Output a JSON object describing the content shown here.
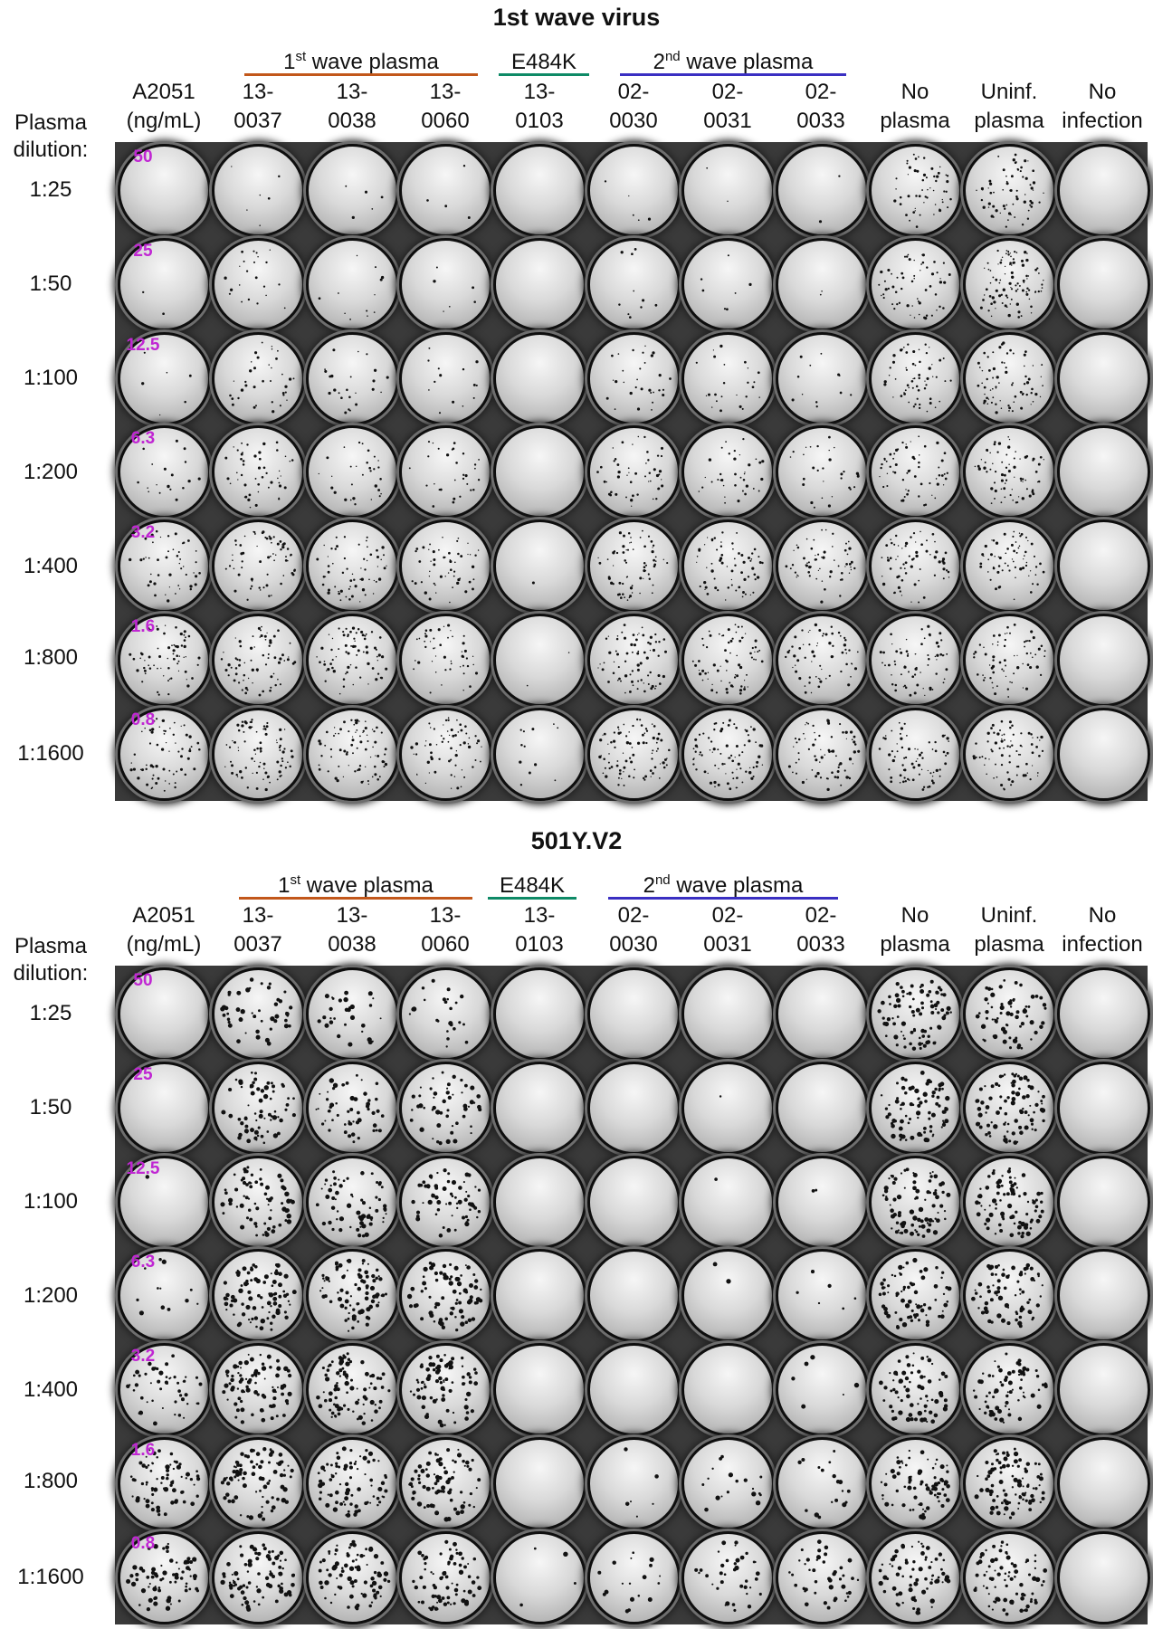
{
  "panels": [
    {
      "title": "1st wave virus",
      "groups": [
        {
          "label_pre": "1",
          "label_sup": "st",
          "label_post": " wave plasma",
          "color": "#c2571a"
        },
        {
          "label_pre": "E484K",
          "label_sup": "",
          "label_post": "",
          "color": "#0e8a66"
        },
        {
          "label_pre": "2",
          "label_sup": "nd",
          "label_post": " wave plasma",
          "color": "#3a2fc2"
        }
      ],
      "columns": [
        {
          "line1": "A2051",
          "line2": "(ng/mL)"
        },
        {
          "line1": "13-",
          "line2": "0037"
        },
        {
          "line1": "13-",
          "line2": "0038"
        },
        {
          "line1": "13-",
          "line2": "0060"
        },
        {
          "line1": "13-",
          "line2": "0103"
        },
        {
          "line1": "02-",
          "line2": "0030"
        },
        {
          "line1": "02-",
          "line2": "0031"
        },
        {
          "line1": "02-",
          "line2": "0033"
        },
        {
          "line1": "No",
          "line2": "plasma"
        },
        {
          "line1": "Uninf.",
          "line2": "plasma"
        },
        {
          "line1": "No",
          "line2": "infection"
        }
      ],
      "row_header": {
        "line1": "Plasma",
        "line2": "dilution:"
      },
      "rows": [
        "1:25",
        "1:50",
        "1:100",
        "1:200",
        "1:400",
        "1:800",
        "1:1600"
      ],
      "concentrations": [
        "50",
        "25",
        "12.5",
        "6.3",
        "3.2",
        "1.6",
        "0.8"
      ],
      "plaque_density": [
        [
          0.0,
          0.05,
          0.04,
          0.03,
          0.0,
          0.04,
          0.02,
          0.02,
          0.45,
          0.55,
          0.0
        ],
        [
          0.02,
          0.18,
          0.1,
          0.05,
          0.0,
          0.08,
          0.06,
          0.02,
          0.5,
          0.8,
          0.0
        ],
        [
          0.05,
          0.3,
          0.2,
          0.12,
          0.0,
          0.25,
          0.2,
          0.1,
          0.5,
          0.6,
          0.0
        ],
        [
          0.15,
          0.4,
          0.25,
          0.25,
          0.0,
          0.4,
          0.3,
          0.25,
          0.5,
          0.6,
          0.0
        ],
        [
          0.4,
          0.55,
          0.5,
          0.45,
          0.01,
          0.55,
          0.55,
          0.5,
          0.55,
          0.55,
          0.0
        ],
        [
          0.55,
          0.6,
          0.6,
          0.4,
          0.02,
          0.6,
          0.6,
          0.55,
          0.55,
          0.6,
          0.0
        ],
        [
          0.55,
          0.7,
          0.65,
          0.55,
          0.1,
          0.7,
          0.7,
          0.6,
          0.6,
          0.65,
          0.0
        ]
      ],
      "plaque_size": 1.0
    },
    {
      "title": "501Y.V2",
      "groups": [
        {
          "label_pre": "1",
          "label_sup": "st",
          "label_post": " wave plasma",
          "color": "#c2571a"
        },
        {
          "label_pre": "E484K",
          "label_sup": "",
          "label_post": "",
          "color": "#0e8a66"
        },
        {
          "label_pre": "2",
          "label_sup": "nd",
          "label_post": " wave plasma",
          "color": "#3a2fc2"
        }
      ],
      "columns": [
        {
          "line1": "A2051",
          "line2": "(ng/mL)"
        },
        {
          "line1": "13-",
          "line2": "0037"
        },
        {
          "line1": "13-",
          "line2": "0038"
        },
        {
          "line1": "13-",
          "line2": "0060"
        },
        {
          "line1": "13-",
          "line2": "0103"
        },
        {
          "line1": "02-",
          "line2": "0030"
        },
        {
          "line1": "02-",
          "line2": "0031"
        },
        {
          "line1": "02-",
          "line2": "0033"
        },
        {
          "line1": "No",
          "line2": "plasma"
        },
        {
          "line1": "Uninf.",
          "line2": "plasma"
        },
        {
          "line1": "No",
          "line2": "infection"
        }
      ],
      "row_header": {
        "line1": "Plasma",
        "line2": "dilution:"
      },
      "rows": [
        "1:25",
        "1:50",
        "1:100",
        "1:200",
        "1:400",
        "1:800",
        "1:1600"
      ],
      "concentrations": [
        "50",
        "25",
        "12.5",
        "6.3",
        "3.2",
        "1.6",
        "0.8"
      ],
      "plaque_density": [
        [
          0.0,
          0.4,
          0.25,
          0.2,
          0.0,
          0.0,
          0.0,
          0.0,
          0.7,
          0.55,
          0.0
        ],
        [
          0.0,
          0.55,
          0.45,
          0.45,
          0.0,
          0.0,
          0.01,
          0.0,
          0.7,
          0.7,
          0.0
        ],
        [
          0.01,
          0.6,
          0.55,
          0.55,
          0.0,
          0.0,
          0.01,
          0.02,
          0.7,
          0.7,
          0.0
        ],
        [
          0.1,
          0.7,
          0.7,
          0.65,
          0.0,
          0.0,
          0.02,
          0.05,
          0.6,
          0.65,
          0.0
        ],
        [
          0.4,
          0.7,
          0.7,
          0.65,
          0.0,
          0.0,
          0.0,
          0.05,
          0.6,
          0.6,
          0.0
        ],
        [
          0.6,
          0.7,
          0.65,
          0.65,
          0.0,
          0.05,
          0.15,
          0.15,
          0.65,
          0.75,
          0.0
        ],
        [
          0.6,
          0.7,
          0.65,
          0.6,
          0.03,
          0.15,
          0.3,
          0.35,
          0.65,
          0.65,
          0.0
        ]
      ],
      "plaque_size": 1.6
    }
  ]
}
